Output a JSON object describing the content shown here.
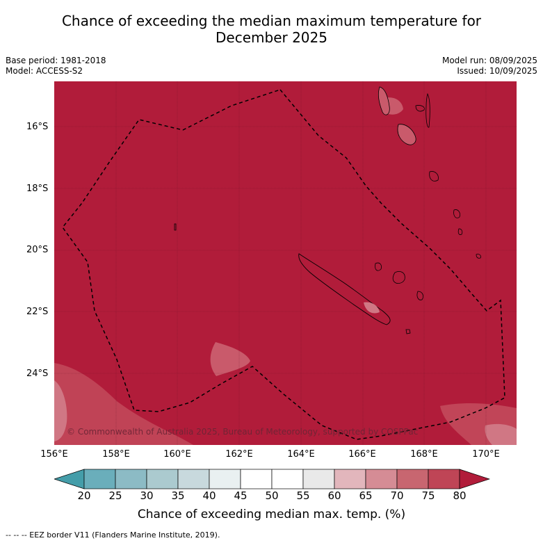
{
  "title_line1": "Chance of exceeding the median maximum temperature for",
  "title_line2": "December 2025",
  "meta": {
    "base_period": "Base period: 1981-2018",
    "model": "Model: ACCESS-S2",
    "model_run": "Model run: 08/09/2025",
    "issued": "Issued: 10/09/2025"
  },
  "map": {
    "lon_range": [
      156,
      171
    ],
    "lat_range": [
      -14.6,
      -26.4
    ],
    "lat_labels": [
      "16°S",
      "18°S",
      "20°S",
      "22°S",
      "24°S"
    ],
    "lon_labels": [
      "156°E",
      "158°E",
      "160°E",
      "162°E",
      "164°E",
      "166°E",
      "168°E",
      "170°E"
    ],
    "background_color": "#b11c3a",
    "copyright": "© Commonwealth of Australia 2025, Bureau of Meteorology, supported by COSPPac"
  },
  "colorbar": {
    "ticks": [
      "20",
      "25",
      "30",
      "35",
      "40",
      "45",
      "50",
      "55",
      "60",
      "65",
      "70",
      "75",
      "80"
    ],
    "colors": [
      "#449da9",
      "#6aaebb",
      "#8cbbc5",
      "#abcacf",
      "#c8d9dd",
      "#e9f0f1",
      "#ffffff",
      "#ffffff",
      "#e9e9e9",
      "#e2b6bc",
      "#d58c95",
      "#c86670",
      "#bf4556",
      "#b11c3a"
    ],
    "title": "Chance of exceeding median max. temp. (%)"
  },
  "footnote": "--  --  -- EEZ border V11 (Flanders Marine Institute, 2019)."
}
